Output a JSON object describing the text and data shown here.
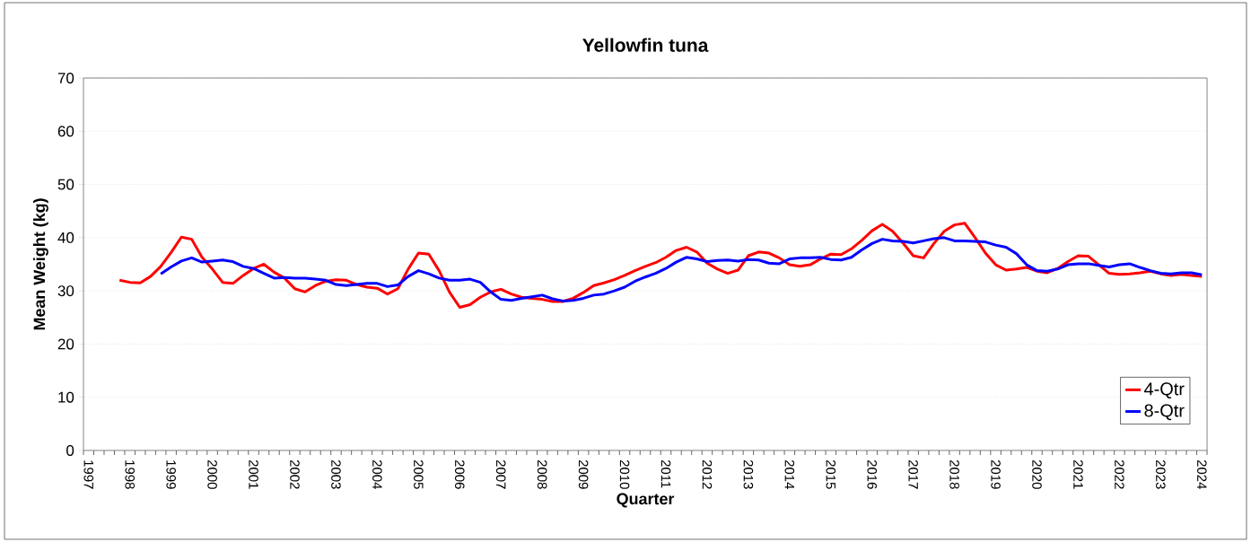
{
  "chart_data": {
    "type": "line",
    "title": "Yellowfin tuna",
    "xlabel": "Quarter",
    "ylabel": "Mean Weight (kg)",
    "categories": [
      "1997",
      null,
      null,
      null,
      "1998",
      null,
      null,
      null,
      "1999",
      null,
      null,
      null,
      "2000",
      null,
      null,
      null,
      "2001",
      null,
      null,
      null,
      "2002",
      null,
      null,
      null,
      "2003",
      null,
      null,
      null,
      "2004",
      null,
      null,
      null,
      "2005",
      null,
      null,
      null,
      "2006",
      null,
      null,
      null,
      "2007",
      null,
      null,
      null,
      "2008",
      null,
      null,
      null,
      "2009",
      null,
      null,
      null,
      "2010",
      null,
      null,
      null,
      "2011",
      null,
      null,
      null,
      "2012",
      null,
      null,
      null,
      "2013",
      null,
      null,
      null,
      "2014",
      null,
      null,
      null,
      "2015",
      null,
      null,
      null,
      "2016",
      null,
      null,
      null,
      "2017",
      null,
      null,
      null,
      "2018",
      null,
      null,
      null,
      "2019",
      null,
      null,
      null,
      "2020",
      null,
      null,
      null,
      "2021",
      null,
      null,
      null,
      "2022",
      null,
      null,
      null,
      "2023",
      null,
      null,
      null,
      "2024"
    ],
    "series": [
      {
        "name": "4-Qtr",
        "color": "#ff0000",
        "values": [
          null,
          null,
          null,
          32.0,
          31.6,
          31.5,
          32.7,
          34.6,
          37.2,
          40.1,
          39.7,
          36.3,
          34.1,
          31.6,
          31.4,
          32.9,
          34.2,
          35.0,
          33.5,
          32.4,
          30.4,
          29.8,
          31.0,
          31.8,
          32.1,
          32.0,
          31.2,
          30.7,
          30.5,
          29.4,
          30.4,
          34.1,
          37.1,
          36.9,
          33.8,
          29.8,
          26.9,
          27.4,
          28.8,
          29.8,
          30.3,
          29.4,
          28.8,
          28.6,
          28.4,
          28.0,
          28.0,
          28.6,
          29.7,
          31.0,
          31.5,
          32.1,
          32.9,
          33.8,
          34.6,
          35.3,
          36.3,
          37.6,
          38.2,
          37.3,
          35.2,
          34.1,
          33.3,
          33.9,
          36.6,
          37.3,
          37.1,
          36.2,
          34.9,
          34.6,
          34.9,
          36.0,
          36.9,
          36.8,
          37.9,
          39.5,
          41.3,
          42.5,
          41.2,
          39.0,
          36.6,
          36.2,
          38.9,
          41.2,
          42.4,
          42.7,
          40.0,
          37.1,
          34.9,
          33.9,
          34.1,
          34.4,
          33.7,
          33.4,
          34.2,
          35.5,
          36.6,
          36.5,
          34.9,
          33.3,
          33.1,
          33.2,
          33.4,
          33.7,
          33.2,
          32.9,
          33.1,
          32.9,
          32.7
        ]
      },
      {
        "name": "8-Qtr",
        "color": "#0000ff",
        "values": [
          null,
          null,
          null,
          null,
          null,
          null,
          null,
          33.2,
          34.5,
          35.6,
          36.2,
          35.4,
          35.6,
          35.8,
          35.5,
          34.6,
          34.2,
          33.3,
          32.4,
          32.5,
          32.4,
          32.4,
          32.2,
          32.0,
          31.2,
          31.0,
          31.2,
          31.4,
          31.4,
          30.8,
          31.1,
          32.7,
          33.8,
          33.2,
          32.4,
          32.0,
          32.0,
          32.2,
          31.6,
          29.8,
          28.4,
          28.2,
          28.6,
          28.9,
          29.2,
          28.5,
          28.1,
          28.2,
          28.6,
          29.2,
          29.4,
          30.0,
          30.7,
          31.8,
          32.6,
          33.3,
          34.2,
          35.4,
          36.3,
          36.0,
          35.5,
          35.7,
          35.8,
          35.6,
          35.9,
          35.8,
          35.2,
          35.1,
          36.0,
          36.2,
          36.2,
          36.3,
          35.9,
          35.8,
          36.3,
          37.7,
          38.9,
          39.7,
          39.4,
          39.3,
          39.0,
          39.4,
          39.8,
          40.0,
          39.4,
          39.4,
          39.3,
          39.2,
          38.6,
          38.2,
          37.0,
          34.9,
          33.8,
          33.7,
          34.1,
          34.9,
          35.1,
          35.1,
          34.8,
          34.5,
          34.9,
          35.1,
          34.4,
          33.8,
          33.3,
          33.2,
          33.4,
          33.4,
          33.0
        ]
      }
    ],
    "ylim": [
      0,
      70
    ],
    "yticks": [
      0,
      10,
      20,
      30,
      40,
      50,
      60,
      70
    ],
    "grid": "y",
    "legend": "bottom right",
    "marker": "none",
    "line_style": "solid"
  }
}
